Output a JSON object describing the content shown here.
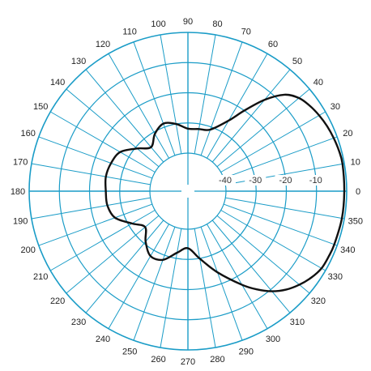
{
  "chart_data": {
    "type": "polar-line",
    "title": "",
    "angle_ticks": [
      "0",
      "10",
      "20",
      "30",
      "40",
      "50",
      "60",
      "70",
      "80",
      "90",
      "100",
      "110",
      "120",
      "130",
      "140",
      "150",
      "160",
      "170",
      "180",
      "190",
      "200",
      "210",
      "220",
      "230",
      "240",
      "250",
      "260",
      "270",
      "280",
      "290",
      "300",
      "310",
      "320",
      "330",
      "340",
      "350"
    ],
    "radial_ticks": [
      "-10",
      "-20",
      "-30",
      "-40"
    ],
    "radial_range": [
      -50,
      0
    ],
    "grid": true,
    "colors": {
      "grid": "#1a9cc7",
      "trace": "#111111",
      "axis": "#ffffff"
    },
    "series": [
      {
        "theta": [
          0,
          10,
          15,
          20,
          25,
          30,
          35,
          40,
          45,
          50,
          55,
          60,
          70,
          80,
          90,
          100,
          110,
          120,
          130,
          140,
          150,
          160,
          170,
          180,
          190,
          200,
          210,
          220,
          230,
          240,
          250,
          260,
          270,
          280,
          290,
          300,
          305,
          310,
          315,
          320,
          325,
          330,
          335,
          340,
          350
        ],
        "r": [
          -0.8,
          -0.6,
          -0.8,
          -1.2,
          -1.7,
          -2.4,
          -3.3,
          -4.6,
          -7.4,
          -13.1,
          -20.0,
          -25.6,
          -30.9,
          -31.7,
          -31.9,
          -30.0,
          -28.8,
          -30.7,
          -33.6,
          -30.6,
          -26.7,
          -25.5,
          -25.0,
          -25.4,
          -25.5,
          -26.9,
          -31.2,
          -34.1,
          -30.8,
          -27.8,
          -28.4,
          -31.9,
          -33.7,
          -29.9,
          -24.0,
          -16.8,
          -12.9,
          -9.3,
          -6.5,
          -4.4,
          -2.7,
          -1.5,
          -1.2,
          -1.0,
          -0.8
        ]
      }
    ]
  }
}
